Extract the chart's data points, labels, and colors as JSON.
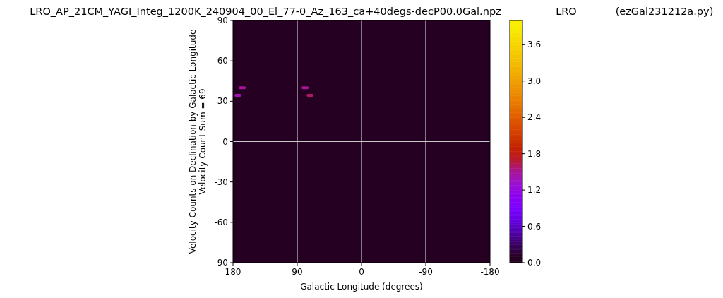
{
  "chart_data": {
    "type": "scatter",
    "title": "LRO_AP_21CM_YAGI_Integ_1200K_240904_00_El_77-0_Az_163_ca+40degs-decP00.0Gal.npz",
    "annotations": [
      "LRO",
      "(ezGal231212a.py)"
    ],
    "xlabel": "Galactic Longitude (degrees)",
    "ylabel": "Velocity Counts on Declination by Galactic Longitude\nVelocity Count Sum = 69",
    "x": [
      167,
      173,
      79,
      72
    ],
    "values": [
      40,
      34.4,
      40,
      34.4
    ],
    "cvalues": [
      1.5,
      1.4,
      1.5,
      1.6
    ],
    "marker": "square",
    "xlim": [
      180,
      -180
    ],
    "xticks": [
      180,
      90,
      0,
      -90,
      -180
    ],
    "ylim": [
      -90,
      90
    ],
    "yticks": [
      -90,
      -60,
      -30,
      0,
      30,
      60,
      90
    ],
    "clim": [
      0,
      4.0
    ],
    "cticks": [
      {
        "value": 0,
        "label": "0.0"
      },
      0.6,
      1.2,
      1.8,
      2.4,
      {
        "value": 3,
        "label": "3.0"
      },
      3.6
    ],
    "ref_lines": [
      {
        "axis": "x",
        "value": 90,
        "color": "#c8c8c8"
      },
      {
        "axis": "x",
        "value": 0,
        "color": "#c8c8c8"
      },
      {
        "axis": "x",
        "value": -90,
        "color": "#c8c8c8"
      },
      {
        "axis": "y",
        "value": 0,
        "color": "#c8c8c8"
      }
    ],
    "grid": false
  }
}
